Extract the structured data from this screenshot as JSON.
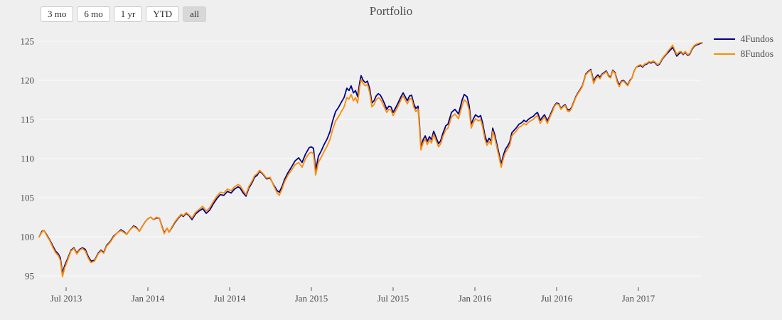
{
  "header": {
    "title": "Portfolio",
    "range_buttons": [
      {
        "label": "3 mo",
        "active": false
      },
      {
        "label": "6 mo",
        "active": false
      },
      {
        "label": "1 yr",
        "active": false
      },
      {
        "label": "YTD",
        "active": false
      },
      {
        "label": "all",
        "active": true
      }
    ]
  },
  "legend": {
    "items": [
      {
        "label": "4Fundos",
        "color": "#00008B"
      },
      {
        "label": "8Fundos",
        "color": "#FF8C00"
      }
    ]
  },
  "chart_data": {
    "type": "line",
    "title": "Portfolio",
    "grid": "horizontal-only",
    "legend_position": "top-right",
    "colors": {
      "background": "#efefef",
      "gridline": "#f7f7f7",
      "tick_text": "#4d4d4d",
      "series1": "#00008B",
      "series2": "#FF8C00"
    },
    "x_axis": {
      "range": [
        2013.31,
        2017.41
      ],
      "ticks": [
        {
          "t": 2013.5,
          "label": "Jul 2013"
        },
        {
          "t": 2014.0,
          "label": "Jan 2014"
        },
        {
          "t": 2014.5,
          "label": "Jul 2014"
        },
        {
          "t": 2015.0,
          "label": "Jan 2015"
        },
        {
          "t": 2015.5,
          "label": "Jul 2015"
        },
        {
          "t": 2016.0,
          "label": "Jan 2016"
        },
        {
          "t": 2016.5,
          "label": "Jul 2016"
        },
        {
          "t": 2017.0,
          "label": "Jan 2017"
        }
      ]
    },
    "y_axis": {
      "range": [
        94.4,
        125.6
      ],
      "ticks": [
        95,
        100,
        105,
        110,
        115,
        120,
        125
      ]
    },
    "series_names": [
      "4Fundos",
      "8Fundos"
    ],
    "points": [
      [
        2013.335,
        100.0,
        100.0
      ],
      [
        2013.352,
        100.7,
        100.6
      ],
      [
        2013.365,
        100.8,
        100.8
      ],
      [
        2013.383,
        100.2,
        100.1
      ],
      [
        2013.4,
        99.6,
        99.5
      ],
      [
        2013.422,
        98.7,
        98.5
      ],
      [
        2013.435,
        98.2,
        98.0
      ],
      [
        2013.452,
        97.8,
        97.6
      ],
      [
        2013.465,
        97.3,
        97.0
      ],
      [
        2013.478,
        95.3,
        94.9
      ],
      [
        2013.491,
        96.3,
        96.0
      ],
      [
        2013.509,
        97.2,
        97.0
      ],
      [
        2013.53,
        98.3,
        98.2
      ],
      [
        2013.548,
        98.6,
        98.5
      ],
      [
        2013.565,
        97.9,
        97.8
      ],
      [
        2013.583,
        98.4,
        98.3
      ],
      [
        2013.6,
        98.6,
        98.5
      ],
      [
        2013.617,
        98.4,
        98.2
      ],
      [
        2013.635,
        97.5,
        97.3
      ],
      [
        2013.652,
        96.9,
        96.7
      ],
      [
        2013.674,
        97.0,
        96.9
      ],
      [
        2013.696,
        97.9,
        97.8
      ],
      [
        2013.713,
        98.3,
        98.2
      ],
      [
        2013.73,
        98.0,
        97.9
      ],
      [
        2013.748,
        98.9,
        98.8
      ],
      [
        2013.77,
        99.4,
        99.3
      ],
      [
        2013.791,
        100.1,
        100.0
      ],
      [
        2013.813,
        100.5,
        100.5
      ],
      [
        2013.835,
        100.9,
        100.8
      ],
      [
        2013.857,
        100.6,
        100.5
      ],
      [
        2013.87,
        100.3,
        100.3
      ],
      [
        2013.891,
        100.9,
        100.9
      ],
      [
        2013.913,
        101.4,
        101.3
      ],
      [
        2013.93,
        101.2,
        101.1
      ],
      [
        2013.948,
        100.7,
        100.7
      ],
      [
        2013.965,
        101.3,
        101.3
      ],
      [
        2013.983,
        101.9,
        101.9
      ],
      [
        2014.0,
        102.3,
        102.3
      ],
      [
        2014.017,
        102.5,
        102.5
      ],
      [
        2014.035,
        102.2,
        102.2
      ],
      [
        2014.052,
        102.4,
        102.5
      ],
      [
        2014.07,
        102.4,
        102.4
      ],
      [
        2014.087,
        101.3,
        101.2
      ],
      [
        2014.1,
        100.5,
        100.4
      ],
      [
        2014.117,
        101.1,
        101.1
      ],
      [
        2014.13,
        100.6,
        100.6
      ],
      [
        2014.148,
        101.2,
        101.3
      ],
      [
        2014.165,
        101.8,
        101.9
      ],
      [
        2014.183,
        102.3,
        102.4
      ],
      [
        2014.204,
        102.8,
        102.9
      ],
      [
        2014.217,
        102.6,
        102.7
      ],
      [
        2014.235,
        103.0,
        103.1
      ],
      [
        2014.252,
        102.7,
        102.8
      ],
      [
        2014.27,
        102.2,
        102.4
      ],
      [
        2014.291,
        102.9,
        103.1
      ],
      [
        2014.313,
        103.3,
        103.5
      ],
      [
        2014.335,
        103.6,
        103.9
      ],
      [
        2014.357,
        103.0,
        103.3
      ],
      [
        2014.378,
        103.4,
        103.7
      ],
      [
        2014.4,
        104.2,
        104.5
      ],
      [
        2014.422,
        104.9,
        105.2
      ],
      [
        2014.443,
        105.4,
        105.7
      ],
      [
        2014.465,
        105.3,
        105.6
      ],
      [
        2014.487,
        105.8,
        106.1
      ],
      [
        2014.509,
        105.6,
        105.9
      ],
      [
        2014.53,
        106.1,
        106.4
      ],
      [
        2014.552,
        106.4,
        106.7
      ],
      [
        2014.565,
        106.2,
        106.5
      ],
      [
        2014.583,
        105.6,
        105.9
      ],
      [
        2014.6,
        105.2,
        105.4
      ],
      [
        2014.617,
        106.2,
        106.4
      ],
      [
        2014.639,
        107.0,
        107.2
      ],
      [
        2014.652,
        107.6,
        107.8
      ],
      [
        2014.67,
        107.9,
        108.1
      ],
      [
        2014.683,
        108.4,
        108.5
      ],
      [
        2014.704,
        108.0,
        108.1
      ],
      [
        2014.726,
        107.4,
        107.5
      ],
      [
        2014.748,
        107.5,
        107.6
      ],
      [
        2014.77,
        106.6,
        106.5
      ],
      [
        2014.791,
        105.9,
        105.6
      ],
      [
        2014.804,
        105.7,
        105.3
      ],
      [
        2014.822,
        106.5,
        106.2
      ],
      [
        2014.835,
        107.3,
        107.0
      ],
      [
        2014.857,
        108.2,
        107.9
      ],
      [
        2014.878,
        108.9,
        108.5
      ],
      [
        2014.9,
        109.7,
        109.2
      ],
      [
        2014.922,
        110.1,
        109.5
      ],
      [
        2014.943,
        109.5,
        108.9
      ],
      [
        2014.965,
        110.6,
        110.0
      ],
      [
        2014.987,
        111.4,
        110.7
      ],
      [
        2015.0,
        111.5,
        110.8
      ],
      [
        2015.013,
        111.3,
        110.6
      ],
      [
        2015.026,
        108.5,
        107.9
      ],
      [
        2015.043,
        110.3,
        109.5
      ],
      [
        2015.061,
        111.0,
        110.2
      ],
      [
        2015.078,
        111.8,
        110.9
      ],
      [
        2015.096,
        112.5,
        111.6
      ],
      [
        2015.113,
        113.4,
        112.4
      ],
      [
        2015.13,
        114.8,
        113.7
      ],
      [
        2015.148,
        116.0,
        114.8
      ],
      [
        2015.165,
        116.5,
        115.3
      ],
      [
        2015.183,
        117.2,
        116.0
      ],
      [
        2015.2,
        117.8,
        116.6
      ],
      [
        2015.217,
        119.0,
        117.8
      ],
      [
        2015.23,
        118.7,
        117.6
      ],
      [
        2015.243,
        119.3,
        118.2
      ],
      [
        2015.257,
        118.4,
        117.4
      ],
      [
        2015.27,
        118.7,
        117.8
      ],
      [
        2015.283,
        117.9,
        117.1
      ],
      [
        2015.296,
        119.8,
        119.2
      ],
      [
        2015.304,
        120.6,
        120.1
      ],
      [
        2015.317,
        120.0,
        119.6
      ],
      [
        2015.33,
        119.7,
        119.3
      ],
      [
        2015.343,
        119.9,
        119.5
      ],
      [
        2015.357,
        118.9,
        118.4
      ],
      [
        2015.37,
        117.1,
        116.6
      ],
      [
        2015.383,
        117.4,
        116.9
      ],
      [
        2015.396,
        118.0,
        117.5
      ],
      [
        2015.409,
        118.3,
        117.8
      ],
      [
        2015.422,
        118.1,
        117.6
      ],
      [
        2015.435,
        117.6,
        117.1
      ],
      [
        2015.448,
        117.0,
        116.5
      ],
      [
        2015.461,
        116.3,
        115.9
      ],
      [
        2015.474,
        116.7,
        116.3
      ],
      [
        2015.487,
        116.6,
        116.2
      ],
      [
        2015.5,
        115.9,
        115.5
      ],
      [
        2015.513,
        116.4,
        116.0
      ],
      [
        2015.53,
        117.1,
        116.7
      ],
      [
        2015.548,
        117.9,
        117.5
      ],
      [
        2015.561,
        118.4,
        118.0
      ],
      [
        2015.574,
        117.9,
        117.5
      ],
      [
        2015.587,
        117.4,
        117.0
      ],
      [
        2015.6,
        118.0,
        117.6
      ],
      [
        2015.613,
        118.1,
        117.7
      ],
      [
        2015.626,
        117.0,
        116.6
      ],
      [
        2015.639,
        116.4,
        116.0
      ],
      [
        2015.652,
        116.7,
        116.3
      ],
      [
        2015.661,
        114.5,
        114.1
      ],
      [
        2015.67,
        111.4,
        111.1
      ],
      [
        2015.683,
        112.4,
        112.0
      ],
      [
        2015.696,
        112.9,
        112.5
      ],
      [
        2015.709,
        112.2,
        111.8
      ],
      [
        2015.722,
        112.8,
        112.4
      ],
      [
        2015.735,
        112.4,
        112.0
      ],
      [
        2015.748,
        113.5,
        113.1
      ],
      [
        2015.761,
        112.8,
        112.4
      ],
      [
        2015.778,
        111.9,
        111.5
      ],
      [
        2015.791,
        112.3,
        111.9
      ],
      [
        2015.804,
        113.2,
        112.8
      ],
      [
        2015.822,
        114.2,
        113.7
      ],
      [
        2015.835,
        114.4,
        113.9
      ],
      [
        2015.857,
        115.9,
        115.3
      ],
      [
        2015.878,
        116.3,
        115.7
      ],
      [
        2015.9,
        115.7,
        115.1
      ],
      [
        2015.922,
        117.5,
        116.8
      ],
      [
        2015.935,
        118.2,
        117.5
      ],
      [
        2015.952,
        117.9,
        117.2
      ],
      [
        2015.965,
        116.8,
        116.2
      ],
      [
        2015.978,
        114.4,
        113.9
      ],
      [
        2015.991,
        115.1,
        114.6
      ],
      [
        2016.004,
        115.6,
        115.1
      ],
      [
        2016.022,
        115.3,
        114.8
      ],
      [
        2016.035,
        115.5,
        115.0
      ],
      [
        2016.048,
        114.5,
        114.0
      ],
      [
        2016.061,
        113.0,
        112.5
      ],
      [
        2016.074,
        112.1,
        111.7
      ],
      [
        2016.087,
        112.6,
        112.2
      ],
      [
        2016.1,
        112.2,
        111.8
      ],
      [
        2016.109,
        113.9,
        113.5
      ],
      [
        2016.122,
        113.0,
        112.6
      ],
      [
        2016.135,
        111.8,
        111.4
      ],
      [
        2016.148,
        110.6,
        110.2
      ],
      [
        2016.161,
        109.3,
        108.9
      ],
      [
        2016.174,
        110.4,
        110.0
      ],
      [
        2016.187,
        111.2,
        110.8
      ],
      [
        2016.2,
        111.6,
        111.2
      ],
      [
        2016.213,
        112.1,
        111.7
      ],
      [
        2016.226,
        113.3,
        112.9
      ],
      [
        2016.239,
        113.6,
        113.2
      ],
      [
        2016.252,
        113.9,
        113.5
      ],
      [
        2016.27,
        114.4,
        114.0
      ],
      [
        2016.287,
        114.6,
        114.2
      ],
      [
        2016.3,
        114.9,
        114.5
      ],
      [
        2016.313,
        114.7,
        114.3
      ],
      [
        2016.326,
        115.0,
        114.6
      ],
      [
        2016.339,
        115.2,
        114.8
      ],
      [
        2016.357,
        115.4,
        115.0
      ],
      [
        2016.37,
        115.7,
        115.3
      ],
      [
        2016.383,
        115.9,
        115.5
      ],
      [
        2016.4,
        114.9,
        114.5
      ],
      [
        2016.413,
        115.3,
        115.0
      ],
      [
        2016.426,
        115.6,
        115.3
      ],
      [
        2016.443,
        114.8,
        114.5
      ],
      [
        2016.457,
        115.4,
        115.2
      ],
      [
        2016.474,
        116.2,
        116.0
      ],
      [
        2016.487,
        116.8,
        116.7
      ],
      [
        2016.5,
        117.1,
        117.0
      ],
      [
        2016.513,
        117.0,
        116.9
      ],
      [
        2016.526,
        116.4,
        116.3
      ],
      [
        2016.539,
        116.7,
        116.6
      ],
      [
        2016.552,
        116.9,
        116.8
      ],
      [
        2016.565,
        116.3,
        116.1
      ],
      [
        2016.578,
        116.2,
        116.0
      ],
      [
        2016.591,
        116.5,
        116.4
      ],
      [
        2016.604,
        117.2,
        117.1
      ],
      [
        2016.617,
        117.9,
        117.8
      ],
      [
        2016.63,
        118.4,
        118.3
      ],
      [
        2016.643,
        118.8,
        118.7
      ],
      [
        2016.657,
        119.3,
        119.2
      ],
      [
        2016.67,
        120.2,
        120.1
      ],
      [
        2016.678,
        120.8,
        120.7
      ],
      [
        2016.696,
        121.2,
        121.1
      ],
      [
        2016.709,
        121.4,
        121.3
      ],
      [
        2016.726,
        119.9,
        119.6
      ],
      [
        2016.739,
        120.4,
        120.2
      ],
      [
        2016.752,
        120.7,
        120.5
      ],
      [
        2016.765,
        120.4,
        120.2
      ],
      [
        2016.778,
        120.8,
        120.7
      ],
      [
        2016.791,
        121.0,
        120.9
      ],
      [
        2016.804,
        121.2,
        121.1
      ],
      [
        2016.817,
        120.6,
        120.5
      ],
      [
        2016.83,
        120.4,
        120.3
      ],
      [
        2016.843,
        121.3,
        121.2
      ],
      [
        2016.857,
        121.0,
        120.9
      ],
      [
        2016.87,
        120.0,
        119.8
      ],
      [
        2016.883,
        119.4,
        119.2
      ],
      [
        2016.896,
        119.9,
        119.8
      ],
      [
        2016.909,
        120.0,
        119.9
      ],
      [
        2016.922,
        119.7,
        119.6
      ],
      [
        2016.935,
        119.4,
        119.3
      ],
      [
        2016.948,
        120.0,
        119.9
      ],
      [
        2016.961,
        120.3,
        120.3
      ],
      [
        2016.974,
        121.2,
        121.2
      ],
      [
        2016.987,
        121.7,
        121.7
      ],
      [
        2017.0,
        121.8,
        121.9
      ],
      [
        2017.013,
        121.9,
        122.0
      ],
      [
        2017.026,
        121.7,
        121.8
      ],
      [
        2017.039,
        122.0,
        122.1
      ],
      [
        2017.052,
        122.1,
        122.2
      ],
      [
        2017.065,
        122.3,
        122.4
      ],
      [
        2017.078,
        122.2,
        122.3
      ],
      [
        2017.091,
        122.4,
        122.5
      ],
      [
        2017.104,
        122.2,
        122.3
      ],
      [
        2017.117,
        121.9,
        122.0
      ],
      [
        2017.13,
        122.1,
        122.2
      ],
      [
        2017.143,
        122.6,
        122.7
      ],
      [
        2017.157,
        123.0,
        123.1
      ],
      [
        2017.17,
        123.3,
        123.4
      ],
      [
        2017.183,
        123.6,
        123.8
      ],
      [
        2017.196,
        123.9,
        124.1
      ],
      [
        2017.209,
        124.2,
        124.5
      ],
      [
        2017.222,
        123.7,
        123.9
      ],
      [
        2017.235,
        123.1,
        123.3
      ],
      [
        2017.248,
        123.4,
        123.6
      ],
      [
        2017.261,
        123.6,
        123.7
      ],
      [
        2017.274,
        123.3,
        123.4
      ],
      [
        2017.287,
        123.6,
        123.7
      ],
      [
        2017.3,
        123.2,
        123.3
      ],
      [
        2017.313,
        123.3,
        123.4
      ],
      [
        2017.326,
        123.9,
        124.0
      ],
      [
        2017.339,
        124.3,
        124.4
      ],
      [
        2017.352,
        124.5,
        124.6
      ],
      [
        2017.365,
        124.6,
        124.7
      ],
      [
        2017.378,
        124.7,
        124.8
      ],
      [
        2017.391,
        124.8,
        124.8
      ]
    ]
  }
}
